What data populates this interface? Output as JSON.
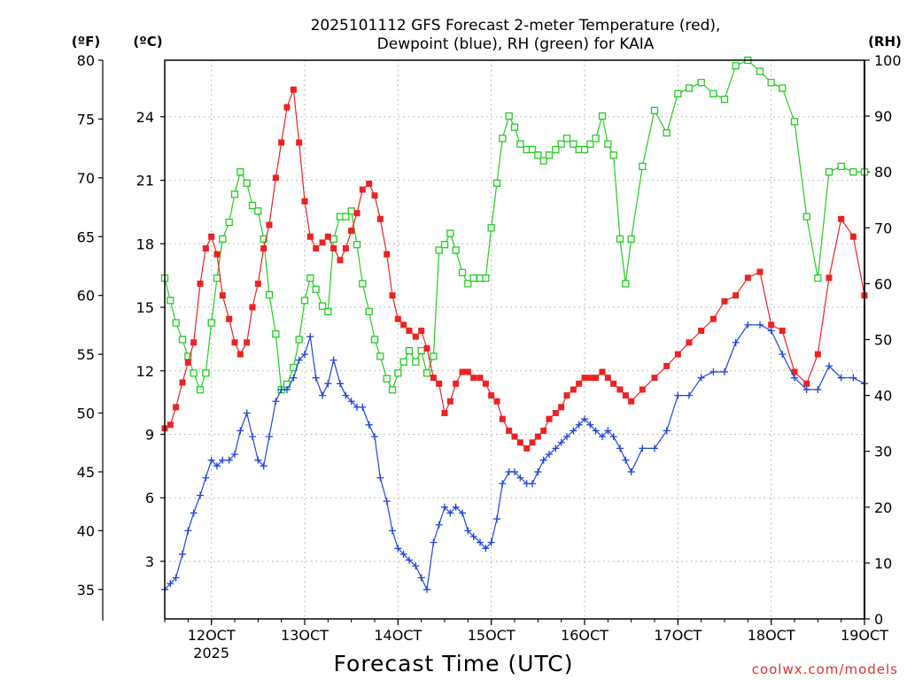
{
  "chart_data": {
    "type": "line",
    "title": [
      "2025101112 GFS Forecast 2-meter Temperature (red),",
      "Dewpoint (blue), RH (green) for KAIA"
    ],
    "xlabel": "Forecast Time (UTC)",
    "credit": "coolwx.com/models",
    "units": {
      "left_f": "(ºF)",
      "left_c": "(ºC)",
      "right": "(RH)"
    },
    "x_ticks": [
      {
        "x": 12,
        "label": "12OCT",
        "sub": "2025"
      },
      {
        "x": 13,
        "label": "13OCT"
      },
      {
        "x": 14,
        "label": "14OCT"
      },
      {
        "x": 15,
        "label": "15OCT"
      },
      {
        "x": 16,
        "label": "16OCT"
      },
      {
        "x": 17,
        "label": "17OCT"
      },
      {
        "x": 18,
        "label": "18OCT"
      },
      {
        "x": 19,
        "label": "19OCT"
      }
    ],
    "xlim": [
      11.5,
      19.0
    ],
    "f_axis": {
      "lim": [
        32.5,
        80
      ],
      "ticks": [
        35,
        40,
        45,
        50,
        55,
        60,
        65,
        70,
        75,
        80
      ]
    },
    "c_axis": {
      "lim": [
        0.28,
        26.67
      ],
      "ticks": [
        3,
        6,
        9,
        12,
        15,
        18,
        21,
        24
      ]
    },
    "rh_axis": {
      "lim": [
        0,
        100
      ],
      "ticks": [
        0,
        10,
        20,
        30,
        40,
        50,
        60,
        70,
        80,
        90,
        100
      ]
    },
    "series": [
      {
        "name": "Temperature",
        "axis": "f",
        "color": "#ee2222",
        "marker": "square-filled",
        "x": [
          11.5,
          11.56,
          11.62,
          11.69,
          11.75,
          11.81,
          11.88,
          11.94,
          12.0,
          12.06,
          12.12,
          12.19,
          12.25,
          12.31,
          12.38,
          12.44,
          12.5,
          12.56,
          12.62,
          12.69,
          12.75,
          12.81,
          12.88,
          12.94,
          13.0,
          13.06,
          13.12,
          13.19,
          13.25,
          13.31,
          13.38,
          13.44,
          13.5,
          13.56,
          13.62,
          13.69,
          13.75,
          13.81,
          13.88,
          13.94,
          14.0,
          14.06,
          14.12,
          14.19,
          14.25,
          14.31,
          14.38,
          14.44,
          14.5,
          14.56,
          14.62,
          14.69,
          14.75,
          14.81,
          14.88,
          14.94,
          15.0,
          15.06,
          15.12,
          15.19,
          15.25,
          15.31,
          15.38,
          15.44,
          15.5,
          15.56,
          15.62,
          15.69,
          15.75,
          15.81,
          15.88,
          15.94,
          16.0,
          16.06,
          16.12,
          16.19,
          16.25,
          16.31,
          16.38,
          16.44,
          16.5,
          16.62,
          16.75,
          16.88,
          17.0,
          17.12,
          17.25,
          17.38,
          17.5,
          17.62,
          17.75,
          17.88,
          18.0,
          18.12,
          18.25,
          18.38,
          18.5,
          18.62,
          18.75,
          18.88,
          19.0
        ],
        "values": [
          48.7,
          49.0,
          50.5,
          52.6,
          54.3,
          56.0,
          61.0,
          64.0,
          65.0,
          63.5,
          60.0,
          58.0,
          56.0,
          55.0,
          56.0,
          59.0,
          61.0,
          64.0,
          66.0,
          70.0,
          73.0,
          76.0,
          77.5,
          73.0,
          68.0,
          65.0,
          64.0,
          64.5,
          65.0,
          64.0,
          63.0,
          64.0,
          65.5,
          67.0,
          69.0,
          69.5,
          68.5,
          66.5,
          63.5,
          60.0,
          58.0,
          57.5,
          57.0,
          56.5,
          57.0,
          55.5,
          53.0,
          52.5,
          50.0,
          51.0,
          52.5,
          53.5,
          53.5,
          53.0,
          53.0,
          52.5,
          51.5,
          51.0,
          49.5,
          48.5,
          48.0,
          47.5,
          47.0,
          47.5,
          48.0,
          48.5,
          49.5,
          50.0,
          50.5,
          51.5,
          52.0,
          52.5,
          53.0,
          53.0,
          53.0,
          53.5,
          53.0,
          52.5,
          52.0,
          51.5,
          51.0,
          52.0,
          53.0,
          54.0,
          55.0,
          56.0,
          57.0,
          58.0,
          59.5,
          60.0,
          61.5,
          62.0,
          57.5,
          57.0,
          53.5,
          52.5,
          55.0,
          61.5,
          66.5,
          65.0,
          60.0
        ]
      },
      {
        "name": "Dewpoint",
        "axis": "f",
        "color": "#2244dd",
        "marker": "plus",
        "x": [
          11.5,
          11.56,
          11.62,
          11.69,
          11.75,
          11.81,
          11.88,
          11.94,
          12.0,
          12.06,
          12.12,
          12.19,
          12.25,
          12.31,
          12.38,
          12.44,
          12.5,
          12.56,
          12.62,
          12.69,
          12.75,
          12.81,
          12.88,
          12.94,
          13.0,
          13.06,
          13.12,
          13.19,
          13.25,
          13.31,
          13.38,
          13.44,
          13.5,
          13.56,
          13.62,
          13.69,
          13.75,
          13.81,
          13.88,
          13.94,
          14.0,
          14.06,
          14.12,
          14.19,
          14.25,
          14.31,
          14.38,
          14.44,
          14.5,
          14.56,
          14.62,
          14.69,
          14.75,
          14.81,
          14.88,
          14.94,
          15.0,
          15.06,
          15.12,
          15.19,
          15.25,
          15.31,
          15.38,
          15.44,
          15.5,
          15.56,
          15.62,
          15.69,
          15.75,
          15.81,
          15.88,
          15.94,
          16.0,
          16.06,
          16.12,
          16.19,
          16.25,
          16.31,
          16.38,
          16.44,
          16.5,
          16.62,
          16.75,
          16.88,
          17.0,
          17.12,
          17.25,
          17.38,
          17.5,
          17.62,
          17.75,
          17.88,
          18.0,
          18.12,
          18.25,
          18.38,
          18.5,
          18.62,
          18.75,
          18.88,
          19.0
        ],
        "values": [
          35.0,
          35.5,
          36.0,
          38.0,
          40.0,
          41.5,
          43.0,
          44.5,
          46.0,
          45.5,
          46.0,
          46.0,
          46.5,
          48.5,
          50.0,
          48.0,
          46.0,
          45.5,
          48.0,
          51.0,
          52.0,
          52.0,
          53.0,
          54.5,
          55.0,
          56.5,
          53.0,
          51.5,
          52.5,
          54.5,
          52.5,
          51.5,
          51.0,
          50.5,
          50.5,
          49.0,
          48.0,
          44.5,
          42.5,
          40.0,
          38.5,
          38.0,
          37.5,
          37.0,
          36.0,
          35.0,
          39.0,
          40.5,
          42.0,
          41.5,
          42.0,
          41.5,
          40.0,
          39.5,
          39.0,
          38.5,
          39.0,
          41.0,
          44.0,
          45.0,
          45.0,
          44.5,
          44.0,
          44.0,
          45.0,
          46.0,
          46.5,
          47.0,
          47.5,
          48.0,
          48.5,
          49.0,
          49.5,
          49.0,
          48.5,
          48.0,
          48.5,
          48.0,
          47.0,
          46.0,
          45.0,
          47.0,
          47.0,
          48.5,
          51.5,
          51.5,
          53.0,
          53.5,
          53.5,
          56.0,
          57.5,
          57.5,
          57.0,
          55.0,
          53.0,
          52.0,
          52.0,
          54.0,
          53.0,
          53.0,
          52.5
        ]
      },
      {
        "name": "RH",
        "axis": "rh",
        "color": "#22cc22",
        "marker": "square-open",
        "x": [
          11.5,
          11.56,
          11.62,
          11.69,
          11.75,
          11.81,
          11.88,
          11.94,
          12.0,
          12.06,
          12.12,
          12.19,
          12.25,
          12.31,
          12.38,
          12.44,
          12.5,
          12.56,
          12.62,
          12.69,
          12.75,
          12.81,
          12.88,
          12.94,
          13.0,
          13.06,
          13.12,
          13.19,
          13.25,
          13.31,
          13.38,
          13.44,
          13.5,
          13.56,
          13.62,
          13.69,
          13.75,
          13.81,
          13.88,
          13.94,
          14.0,
          14.06,
          14.12,
          14.19,
          14.25,
          14.31,
          14.38,
          14.44,
          14.5,
          14.56,
          14.62,
          14.69,
          14.75,
          14.81,
          14.88,
          14.94,
          15.0,
          15.06,
          15.12,
          15.19,
          15.25,
          15.31,
          15.38,
          15.44,
          15.5,
          15.56,
          15.62,
          15.69,
          15.75,
          15.81,
          15.88,
          15.94,
          16.0,
          16.06,
          16.12,
          16.19,
          16.25,
          16.31,
          16.38,
          16.44,
          16.5,
          16.62,
          16.75,
          16.88,
          17.0,
          17.12,
          17.25,
          17.38,
          17.5,
          17.62,
          17.75,
          17.88,
          18.0,
          18.12,
          18.25,
          18.38,
          18.5,
          18.62,
          18.75,
          18.88,
          19.0
        ],
        "values": [
          61,
          57,
          53,
          50,
          47,
          44,
          41,
          44,
          53,
          61,
          68,
          71,
          76,
          80,
          78,
          74,
          73,
          68,
          58,
          51,
          41,
          42,
          45,
          50,
          57,
          61,
          59,
          56,
          55,
          68,
          72,
          72,
          73,
          67,
          60,
          55,
          50,
          47,
          43,
          41,
          44,
          46,
          48,
          46,
          48,
          44,
          47,
          66,
          67,
          69,
          66,
          62,
          60,
          61,
          61,
          61,
          70,
          78,
          86,
          90,
          88,
          85,
          84,
          84,
          83,
          82,
          83,
          84,
          85,
          86,
          85,
          84,
          84,
          85,
          86,
          90,
          85,
          83,
          68,
          60,
          68,
          81,
          91,
          87,
          94,
          95,
          96,
          94,
          93,
          99,
          100,
          98,
          96,
          95,
          89,
          72,
          61,
          80,
          81,
          80,
          80
        ]
      }
    ]
  }
}
